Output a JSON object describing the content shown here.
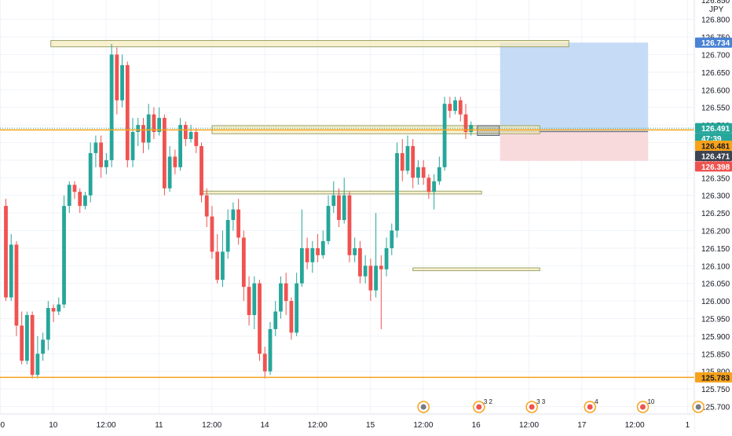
{
  "chart_data": {
    "type": "candlestick",
    "currency_label": "JPY",
    "top_partial_label": "126.850",
    "y_ticks": [
      126.8,
      126.75,
      126.7,
      126.65,
      126.6,
      126.55,
      126.5,
      126.45,
      126.4,
      126.35,
      126.3,
      126.25,
      126.2,
      126.15,
      126.1,
      126.05,
      126.0,
      125.95,
      125.9,
      125.85,
      125.8,
      125.75,
      125.7
    ],
    "y_tick_labels": [
      "126.800",
      "126.750",
      "126.700",
      "126.650",
      "126.600",
      "126.550",
      "126.500",
      "126.450",
      "126.400",
      "126.350",
      "126.300",
      "126.250",
      "126.200",
      "126.150",
      "126.100",
      "126.050",
      "126.000",
      "125.950",
      "125.900",
      "125.850",
      "125.800",
      "125.750",
      "125.700"
    ],
    "ylim": [
      125.69,
      126.855
    ],
    "x_tick_labels": [
      {
        "label": "00",
        "slot": 0
      },
      {
        "label": "10",
        "slot": 10
      },
      {
        "label": "12:00",
        "slot": 20
      },
      {
        "label": "11",
        "slot": 30
      },
      {
        "label": "12:00",
        "slot": 40
      },
      {
        "label": "14",
        "slot": 50
      },
      {
        "label": "12:00",
        "slot": 60
      },
      {
        "label": "15",
        "slot": 70
      },
      {
        "label": "12:00",
        "slot": 80
      },
      {
        "label": "16",
        "slot": 90
      },
      {
        "label": "12:00",
        "slot": 100
      },
      {
        "label": "17",
        "slot": 110
      },
      {
        "label": "12:00",
        "slot": 120
      },
      {
        "label": "1",
        "slot": 130
      }
    ],
    "candles": [
      [
        126.27,
        126.01,
        126.29,
        126.0
      ],
      [
        126.01,
        126.16,
        126.19,
        126.0
      ],
      [
        126.16,
        125.93,
        126.17,
        125.9
      ],
      [
        125.93,
        125.83,
        125.97,
        125.82
      ],
      [
        125.83,
        125.96,
        125.97,
        125.82
      ],
      [
        125.96,
        125.79,
        125.97,
        125.78
      ],
      [
        125.79,
        125.85,
        125.9,
        125.78
      ],
      [
        125.85,
        125.89,
        125.91,
        125.83
      ],
      [
        125.89,
        125.98,
        126.0,
        125.86
      ],
      [
        125.98,
        125.97,
        125.99,
        125.94
      ],
      [
        125.97,
        125.99,
        126.01,
        125.96
      ],
      [
        125.99,
        126.27,
        126.3,
        125.98
      ],
      [
        126.27,
        126.33,
        126.34,
        126.25
      ],
      [
        126.33,
        126.31,
        126.34,
        126.29
      ],
      [
        126.31,
        126.27,
        126.32,
        126.25
      ],
      [
        126.27,
        126.3,
        126.31,
        126.26
      ],
      [
        126.3,
        126.42,
        126.45,
        126.28
      ],
      [
        126.42,
        126.45,
        126.47,
        126.38
      ],
      [
        126.45,
        126.38,
        126.47,
        126.35
      ],
      [
        126.38,
        126.4,
        126.42,
        126.36
      ],
      [
        126.4,
        126.7,
        126.73,
        126.38
      ],
      [
        126.7,
        126.57,
        126.72,
        126.53
      ],
      [
        126.57,
        126.67,
        126.7,
        126.55
      ],
      [
        126.67,
        126.4,
        126.68,
        126.38
      ],
      [
        126.4,
        126.48,
        126.52,
        126.38
      ],
      [
        126.48,
        126.5,
        126.52,
        126.44
      ],
      [
        126.5,
        126.45,
        126.52,
        126.42
      ],
      [
        126.45,
        126.53,
        126.56,
        126.43
      ],
      [
        126.53,
        126.48,
        126.55,
        126.46
      ],
      [
        126.48,
        126.52,
        126.55,
        126.47
      ],
      [
        126.52,
        126.32,
        126.53,
        126.3
      ],
      [
        126.32,
        126.41,
        126.44,
        126.31
      ],
      [
        126.41,
        126.38,
        126.43,
        126.36
      ],
      [
        126.38,
        126.5,
        126.52,
        126.37
      ],
      [
        126.5,
        126.46,
        126.51,
        126.44
      ],
      [
        126.46,
        126.48,
        126.5,
        126.45
      ],
      [
        126.48,
        126.44,
        126.49,
        126.42
      ],
      [
        126.44,
        126.3,
        126.45,
        126.28
      ],
      [
        126.3,
        126.24,
        126.32,
        126.21
      ],
      [
        126.24,
        126.14,
        126.27,
        126.12
      ],
      [
        126.14,
        126.06,
        126.19,
        126.05
      ],
      [
        126.06,
        126.14,
        126.2,
        126.04
      ],
      [
        126.14,
        126.23,
        126.26,
        126.12
      ],
      [
        126.23,
        126.26,
        126.28,
        126.2
      ],
      [
        126.26,
        126.18,
        126.29,
        126.16
      ],
      [
        126.18,
        126.04,
        126.2,
        126.0
      ],
      [
        126.04,
        125.96,
        126.07,
        125.93
      ],
      [
        125.96,
        126.05,
        126.07,
        125.92
      ],
      [
        126.05,
        125.85,
        126.06,
        125.83
      ],
      [
        125.85,
        125.8,
        125.87,
        125.78
      ],
      [
        125.8,
        125.92,
        125.94,
        125.79
      ],
      [
        125.92,
        125.97,
        126.0,
        125.9
      ],
      [
        125.97,
        126.05,
        126.07,
        125.95
      ],
      [
        126.05,
        126.0,
        126.08,
        125.96
      ],
      [
        126.0,
        125.91,
        126.01,
        125.89
      ],
      [
        125.91,
        126.05,
        126.08,
        125.9
      ],
      [
        126.05,
        126.15,
        126.26,
        126.04
      ],
      [
        126.15,
        126.11,
        126.18,
        126.09
      ],
      [
        126.11,
        126.15,
        126.17,
        126.08
      ],
      [
        126.15,
        126.13,
        126.19,
        126.11
      ],
      [
        126.13,
        126.17,
        126.2,
        126.12
      ],
      [
        126.17,
        126.27,
        126.3,
        126.16
      ],
      [
        126.27,
        126.3,
        126.34,
        126.25
      ],
      [
        126.3,
        126.23,
        126.32,
        126.21
      ],
      [
        126.23,
        126.3,
        126.35,
        126.22
      ],
      [
        126.3,
        126.13,
        126.31,
        126.11
      ],
      [
        126.13,
        126.15,
        126.18,
        126.11
      ],
      [
        126.15,
        126.07,
        126.17,
        126.05
      ],
      [
        126.07,
        126.1,
        126.13,
        126.05
      ],
      [
        126.1,
        126.03,
        126.12,
        126.0
      ],
      [
        126.03,
        126.1,
        126.25,
        126.01
      ],
      [
        126.1,
        126.09,
        126.13,
        125.92
      ],
      [
        126.09,
        126.15,
        126.18,
        126.07
      ],
      [
        126.15,
        126.2,
        126.22,
        126.13
      ],
      [
        126.2,
        126.42,
        126.45,
        126.18
      ],
      [
        126.42,
        126.37,
        126.46,
        126.34
      ],
      [
        126.37,
        126.44,
        126.47,
        126.36
      ],
      [
        126.44,
        126.35,
        126.46,
        126.32
      ],
      [
        126.35,
        126.38,
        126.4,
        126.33
      ],
      [
        126.38,
        126.35,
        126.4,
        126.33
      ],
      [
        126.35,
        126.31,
        126.36,
        126.29
      ],
      [
        126.31,
        126.34,
        126.36,
        126.26
      ],
      [
        126.34,
        126.38,
        126.41,
        126.33
      ],
      [
        126.38,
        126.56,
        126.58,
        126.37
      ],
      [
        126.56,
        126.54,
        126.58,
        126.52
      ],
      [
        126.54,
        126.57,
        126.58,
        126.53
      ],
      [
        126.57,
        126.53,
        126.58,
        126.51
      ],
      [
        126.53,
        126.48,
        126.56,
        126.46
      ],
      [
        126.48,
        126.5,
        126.51,
        126.47
      ]
    ],
    "horizontal_lines": [
      {
        "price": 126.486,
        "color": "#f7a21b"
      },
      {
        "price": 125.783,
        "color": "#f7a21b"
      }
    ],
    "zones": [
      {
        "start_slot": 8.5,
        "end_slot": 106.5,
        "top": 126.74,
        "bottom": 126.722
      },
      {
        "start_slot": 39,
        "end_slot": 101,
        "top": 126.498,
        "bottom": 126.475
      },
      {
        "start_slot": 37,
        "end_slot": 90,
        "top": 126.312,
        "bottom": 126.304
      },
      {
        "start_slot": 77,
        "end_slot": 101,
        "top": 126.094,
        "bottom": 126.086
      }
    ],
    "position_tool": {
      "start_slot": 93.5,
      "end_slot": 121.5,
      "target": 126.734,
      "entry": 126.481,
      "stop": 126.398,
      "profit_color": "#bcd6f5",
      "loss_color": "#f8d6d8"
    },
    "price_tags": [
      {
        "label": "126.734",
        "price": 126.734,
        "bg": "#4a82d4",
        "fg": "#ffffff"
      },
      {
        "label": "126.491",
        "price": 126.491,
        "bg": "#26a69a",
        "fg": "#ffffff"
      },
      {
        "label": "47:39",
        "price": 126.462,
        "bg": "#26a69a",
        "fg": "#ffffff"
      },
      {
        "label": "126.481",
        "price": 126.441,
        "bg": "#f7a21b",
        "fg": "#131722"
      },
      {
        "label": "126.471",
        "price": 126.412,
        "bg": "#3d4350",
        "fg": "#ffffff"
      },
      {
        "label": "126.398",
        "price": 126.382,
        "bg": "#ef5350",
        "fg": "#ffffff"
      },
      {
        "label": "125.783",
        "price": 125.783,
        "bg": "#f7a21b",
        "fg": "#131722"
      }
    ],
    "event_markers": [
      {
        "slot": 79,
        "count": ""
      },
      {
        "slot": 89.5,
        "count": "3 2"
      },
      {
        "slot": 99.5,
        "count": "3 3"
      },
      {
        "slot": 110.5,
        "count": "4"
      },
      {
        "slot": 120.5,
        "count": "10"
      },
      {
        "slot": 131,
        "count": ""
      }
    ],
    "colors": {
      "up": "#26a69a",
      "down": "#ef5350",
      "grid": "#f0f3fa",
      "axis_text": "#131722"
    }
  }
}
